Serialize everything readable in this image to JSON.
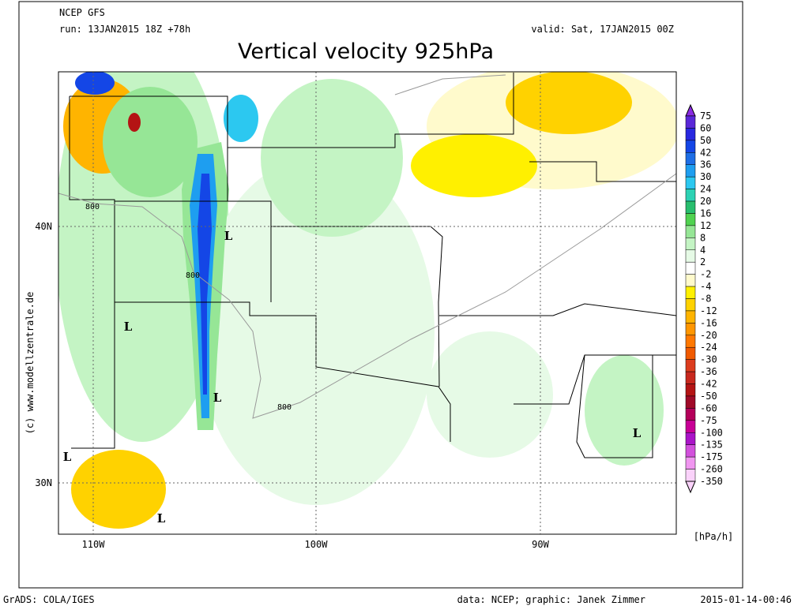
{
  "header": {
    "model": "NCEP GFS",
    "run": "run: 13JAN2015 18Z +78h",
    "valid": "valid: Sat, 17JAN2015 00Z",
    "title": "Vertical velocity 925hPa"
  },
  "map": {
    "lat_labels": [
      "40N",
      "30N"
    ],
    "lon_labels": [
      "110W",
      "100W",
      "90W"
    ],
    "contour_labels": [
      "800",
      "800",
      "800"
    ],
    "lows": [
      "L",
      "L",
      "L",
      "L",
      "L",
      "L"
    ],
    "credit": "(c) www.modellzentrale.de"
  },
  "legend": {
    "unit": "[hPa/h]",
    "levels": [
      "75",
      "60",
      "50",
      "42",
      "36",
      "30",
      "24",
      "20",
      "16",
      "12",
      "8",
      "4",
      "2",
      "-2",
      "-4",
      "-8",
      "-12",
      "-16",
      "-20",
      "-24",
      "-30",
      "-36",
      "-42",
      "-50",
      "-60",
      "-75",
      "-100",
      "-135",
      "-175",
      "-260",
      "-350"
    ],
    "colors": [
      "#8a2be2",
      "#5a28d8",
      "#2828e0",
      "#1446e6",
      "#1e6ee6",
      "#1e9ef0",
      "#2cc8f0",
      "#2cd2b4",
      "#28be6e",
      "#50d250",
      "#96e696",
      "#c4f4c4",
      "#e6fae6",
      "#ffffff",
      "#fffacc",
      "#fff000",
      "#ffd200",
      "#ffb400",
      "#ff9600",
      "#ff7800",
      "#f05a00",
      "#dc3c1e",
      "#c8281e",
      "#b41414",
      "#a00a28",
      "#b4005a",
      "#c80096",
      "#aa14c8",
      "#d250dc",
      "#f096f0",
      "#fad2fa"
    ]
  },
  "footer": {
    "left": "GrADS: COLA/IGES",
    "center": "data: NCEP; graphic: Janek Zimmer",
    "right": "2015-01-14-00:46"
  }
}
